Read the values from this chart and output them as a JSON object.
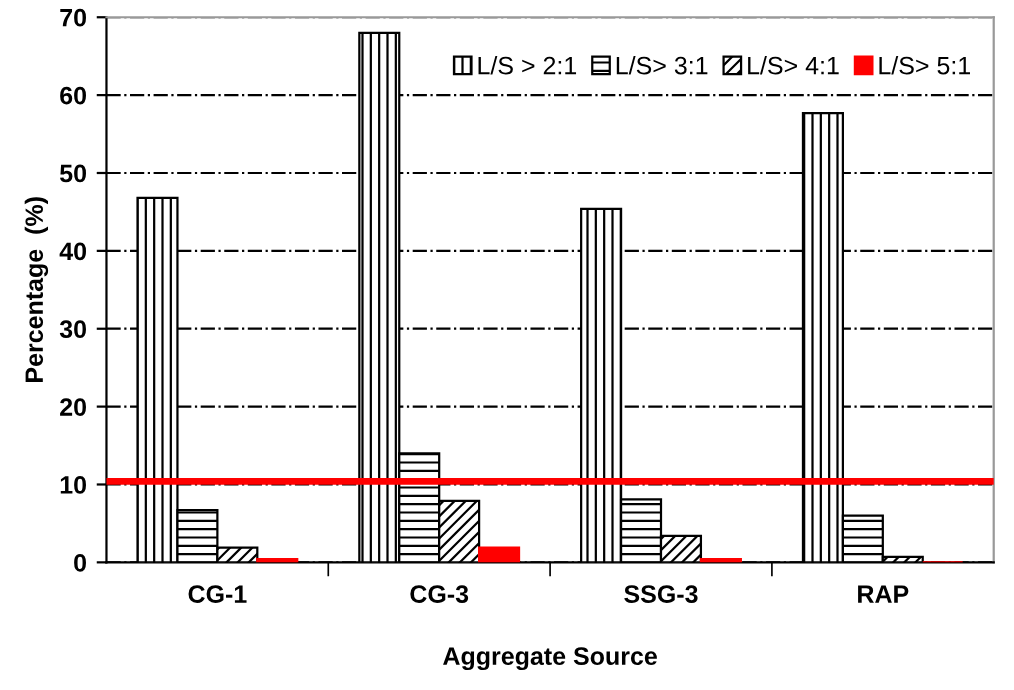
{
  "chart_data": {
    "type": "bar",
    "xlabel": "Aggregate Source",
    "ylabel": "Percentage  (%)",
    "categories": [
      "CG-1",
      "CG-3",
      "SSG-3",
      "RAP"
    ],
    "series": [
      {
        "name": "L/S > 2:1",
        "color": "#000000",
        "values": [
          46.8,
          68,
          45.4,
          57.7
        ]
      },
      {
        "name": "L/S> 3:1",
        "color": "#000000",
        "values": [
          6.7,
          14,
          8.1,
          6.0
        ]
      },
      {
        "name": "L/S> 4:1",
        "color": "#000000",
        "values": [
          1.9,
          7.9,
          3.4,
          0.7
        ]
      },
      {
        "name": "L/S> 5:1",
        "color": "#ff0000",
        "values": [
          0.4,
          1.9,
          0.4,
          0
        ]
      }
    ],
    "ylim": [
      0,
      70
    ],
    "yticks": [
      0,
      10,
      20,
      30,
      40,
      50,
      60,
      70
    ],
    "grid": "y",
    "legend": "top right",
    "ref_lines": [
      {
        "axis": "y",
        "value": 10.4,
        "color": "#ff0000"
      }
    ]
  }
}
